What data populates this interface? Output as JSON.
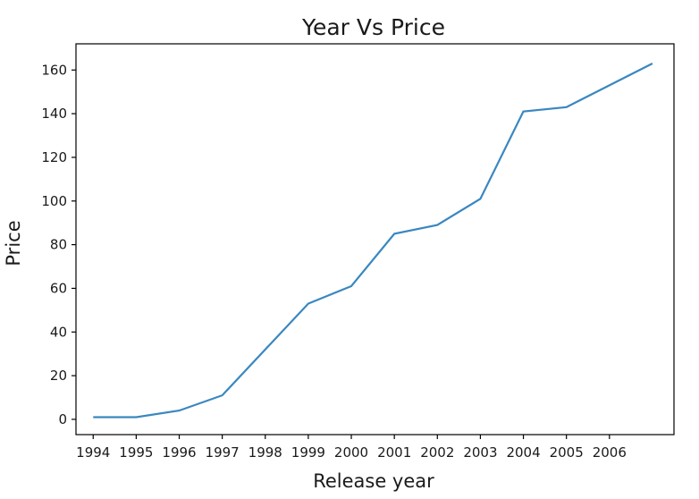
{
  "chart_data": {
    "type": "line",
    "title": "Year Vs Price",
    "xlabel": "Release year",
    "ylabel": "Price",
    "x_ticks": [
      "1994",
      "1995",
      "1996",
      "1997",
      "1998",
      "1999",
      "2000",
      "2001",
      "2002",
      "2003",
      "2004",
      "2005",
      "2006"
    ],
    "y_ticks": [
      0,
      20,
      40,
      60,
      80,
      100,
      120,
      140,
      160
    ],
    "xlim": [
      1993.6,
      2007.5
    ],
    "ylim": [
      -7,
      172
    ],
    "grid": false,
    "color": "#3a87c0",
    "series": [
      {
        "x": [
          1994,
          1995,
          1996,
          1997,
          1998,
          1999,
          2000,
          2001,
          2002,
          2003,
          2004,
          2005,
          2006,
          2007
        ],
        "y": [
          1,
          1,
          4,
          11,
          32,
          53,
          61,
          85,
          89,
          101,
          141,
          143,
          153,
          163
        ]
      }
    ]
  }
}
